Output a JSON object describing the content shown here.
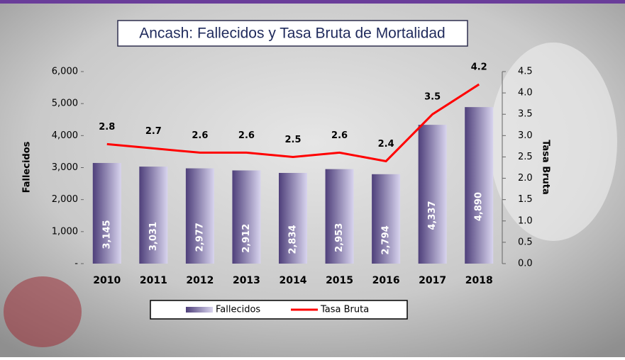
{
  "chart_data": {
    "type": "bar-line",
    "title": "Ancash: Fallecidos y Tasa Bruta de Mortalidad",
    "y_label": "Fallecidos",
    "y2_label": "Tasa Bruta",
    "categories": [
      "2010",
      "2011",
      "2012",
      "2013",
      "2014",
      "2015",
      "2016",
      "2017",
      "2018"
    ],
    "series": [
      {
        "name": "Fallecidos",
        "type": "bar",
        "color": "#4e3f7a",
        "values": [
          3145,
          3031,
          2977,
          2912,
          2834,
          2953,
          2794,
          4337,
          4890
        ],
        "value_labels": [
          "3,145",
          "3,031",
          "2,977",
          "2,912",
          "2,834",
          "2,953",
          "2,794",
          "4,337",
          "4,890"
        ]
      },
      {
        "name": "Tasa Bruta",
        "type": "line",
        "color": "#ff0000",
        "axis": "y2",
        "values": [
          2.8,
          2.7,
          2.6,
          2.6,
          2.5,
          2.6,
          2.4,
          3.5,
          4.2
        ]
      }
    ],
    "ylim": [
      0,
      6000
    ],
    "yticks": [
      {
        "value": 0,
        "label": "-"
      },
      {
        "value": 1000,
        "label": "1,000"
      },
      {
        "value": 2000,
        "label": "2,000"
      },
      {
        "value": 3000,
        "label": "3,000"
      },
      {
        "value": 4000,
        "label": "4,000"
      },
      {
        "value": 5000,
        "label": "5,000"
      },
      {
        "value": 6000,
        "label": "6,000"
      }
    ],
    "y2lim": [
      0,
      4.5
    ],
    "y2ticks": [
      {
        "value": 0,
        "label": "0.0"
      },
      0.5,
      {
        "value": 1,
        "label": "1.0"
      },
      1.5,
      {
        "value": 2,
        "label": "2.0"
      },
      2.5,
      {
        "value": 3,
        "label": "3.0"
      },
      3.5,
      {
        "value": 4,
        "label": "4.0"
      },
      4.5
    ],
    "legend": "bottom"
  }
}
